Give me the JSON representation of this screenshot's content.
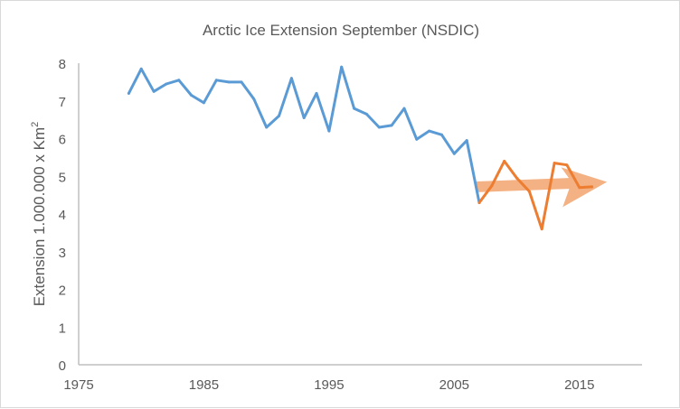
{
  "chart_data": {
    "type": "line",
    "title": "Arctic Ice Extension September (NSDIC)",
    "xlabel": "",
    "ylabel": "Extension 1.000.000 x Km",
    "ylabel_superscript": "2",
    "xlim": [
      1975,
      2020
    ],
    "ylim": [
      0,
      8
    ],
    "x_ticks": [
      "1975",
      "1985",
      "1995",
      "2005",
      "2015"
    ],
    "y_ticks": [
      "0",
      "1",
      "2",
      "3",
      "4",
      "5",
      "6",
      "7",
      "8"
    ],
    "grid": false,
    "legend": "none",
    "series": [
      {
        "name": "blue",
        "color": "#5B9BD5",
        "x": [
          1979,
          1980,
          1981,
          1982,
          1983,
          1984,
          1985,
          1986,
          1987,
          1988,
          1989,
          1990,
          1991,
          1992,
          1993,
          1994,
          1995,
          1996,
          1997,
          1998,
          1999,
          2000,
          2001,
          2002,
          2003,
          2004,
          2005,
          2006,
          2007
        ],
        "values": [
          7.2,
          7.85,
          7.25,
          7.45,
          7.55,
          7.15,
          6.95,
          7.55,
          7.5,
          7.5,
          7.05,
          6.3,
          6.6,
          7.6,
          6.55,
          7.2,
          6.2,
          7.9,
          6.8,
          6.65,
          6.3,
          6.35,
          6.8,
          5.98,
          6.2,
          6.1,
          5.6,
          5.95,
          4.3
        ]
      },
      {
        "name": "orange",
        "color": "#ED7D31",
        "x": [
          2007,
          2008,
          2009,
          2010,
          2011,
          2012,
          2013,
          2014,
          2015,
          2016
        ],
        "values": [
          4.3,
          4.75,
          5.4,
          4.95,
          4.6,
          3.6,
          5.35,
          5.3,
          4.7,
          4.72
        ]
      }
    ],
    "annotation": {
      "type": "trend-arrow",
      "color": "#F4B183",
      "from": [
        2007,
        4.72
      ],
      "to": [
        2017.2,
        4.85
      ]
    }
  }
}
